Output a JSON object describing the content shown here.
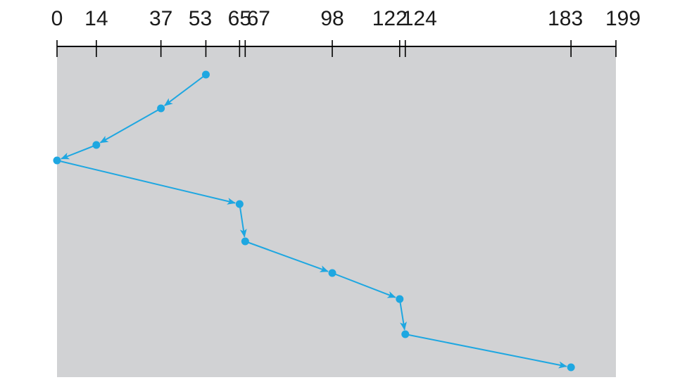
{
  "diagram": {
    "type": "disk-scheduling",
    "cylinder_range": [
      0,
      199
    ],
    "axis_ticks": [
      0,
      14,
      37,
      53,
      65,
      67,
      98,
      122,
      124,
      183,
      199
    ],
    "tick_labels": [
      "0",
      "14",
      "37",
      "53",
      "65",
      "67",
      "98",
      "122",
      "124",
      "183",
      "199"
    ],
    "service_order": [
      53,
      37,
      14,
      0,
      65,
      67,
      98,
      122,
      124,
      183
    ],
    "colors": {
      "panel": "#d1d2d4",
      "path": "#1ea7e1",
      "axis": "#000000",
      "text": "#1a1a1a"
    }
  }
}
